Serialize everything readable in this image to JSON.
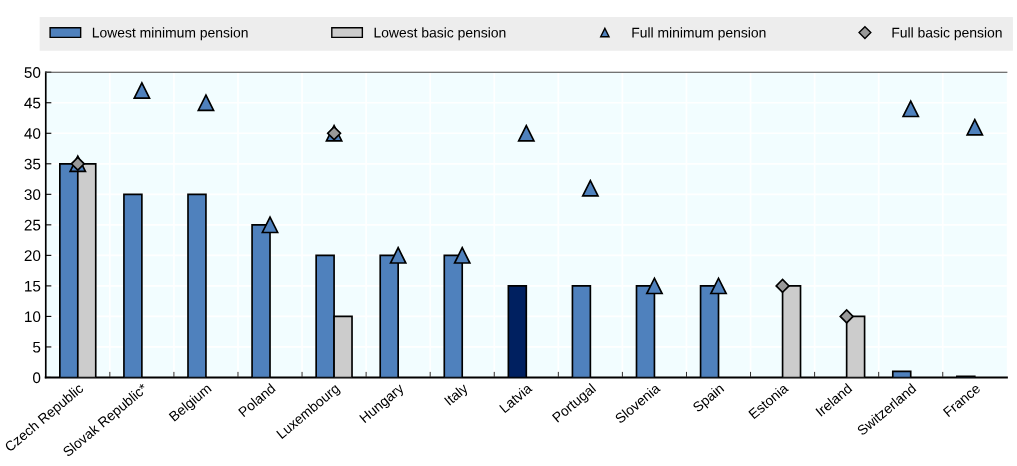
{
  "chart_data": {
    "type": "bar",
    "categories": [
      "Czech Republic",
      "Slovak Republic*",
      "Belgium",
      "Poland",
      "Luxembourg",
      "Hungary",
      "Italy",
      "Latvia",
      "Portugal",
      "Slovenia",
      "Spain",
      "Estonia",
      "Ireland",
      "Switzerland",
      "France"
    ],
    "series": [
      {
        "name": "Lowest minimum pension",
        "color": "#4f81bd",
        "colors": [
          "#4f81bd",
          "#4f81bd",
          "#4f81bd",
          "#4f81bd",
          "#4f81bd",
          "#4f81bd",
          "#4f81bd",
          "#002060",
          "#4f81bd",
          "#4f81bd",
          "#4f81bd",
          "#4f81bd",
          "#4f81bd",
          "#4f81bd",
          "#4f81bd"
        ],
        "values": [
          35,
          30,
          30,
          25,
          20,
          20,
          20,
          15,
          15,
          15,
          15,
          null,
          null,
          1,
          0.2
        ]
      },
      {
        "name": "Lowest basic pension",
        "color": "#cccccc",
        "values": [
          35,
          null,
          null,
          null,
          10,
          null,
          null,
          null,
          null,
          null,
          null,
          15,
          10,
          null,
          null
        ]
      },
      {
        "name": "Full minimum pension",
        "type": "scatter",
        "marker": "triangle",
        "color": "#4f81bd",
        "values": [
          35,
          47,
          45,
          25,
          40,
          20,
          20,
          40,
          31,
          15,
          15,
          null,
          null,
          44,
          41
        ]
      },
      {
        "name": "Full basic pension",
        "type": "scatter",
        "marker": "diamond",
        "color": "#999999",
        "values": [
          35,
          null,
          null,
          null,
          40,
          null,
          null,
          null,
          null,
          null,
          null,
          15,
          10,
          null,
          null
        ]
      }
    ],
    "ylim": [
      0,
      50
    ],
    "yticks": [
      0,
      5,
      10,
      15,
      20,
      25,
      30,
      35,
      40,
      45,
      50
    ],
    "grid": true,
    "legend": "top"
  }
}
